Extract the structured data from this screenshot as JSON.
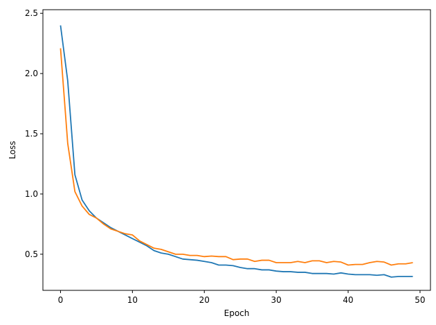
{
  "chart_data": {
    "type": "line",
    "title": "",
    "xlabel": "Epoch",
    "ylabel": "Loss",
    "xlim": [
      -2.45,
      51.45
    ],
    "ylim": [
      0.2,
      2.53
    ],
    "xticks": [
      0,
      10,
      20,
      30,
      40,
      50
    ],
    "yticks": [
      0.5,
      1.0,
      1.5,
      2.0,
      2.5
    ],
    "ytick_labels": [
      "0.5",
      "1.0",
      "1.5",
      "2.0",
      "2.5"
    ],
    "grid": false,
    "legend": "none",
    "x": [
      0,
      1,
      2,
      3,
      4,
      5,
      6,
      7,
      8,
      9,
      10,
      11,
      12,
      13,
      14,
      15,
      16,
      17,
      18,
      19,
      20,
      21,
      22,
      23,
      24,
      25,
      26,
      27,
      28,
      29,
      30,
      31,
      32,
      33,
      34,
      35,
      36,
      37,
      38,
      39,
      40,
      41,
      42,
      43,
      44,
      45,
      46,
      47,
      48,
      49
    ],
    "series": [
      {
        "color": "#1f77b4",
        "values": [
          2.4,
          1.94,
          1.16,
          0.95,
          0.86,
          0.8,
          0.76,
          0.72,
          0.69,
          0.66,
          0.63,
          0.6,
          0.57,
          0.53,
          0.51,
          0.5,
          0.48,
          0.46,
          0.455,
          0.45,
          0.44,
          0.43,
          0.41,
          0.41,
          0.405,
          0.39,
          0.38,
          0.38,
          0.37,
          0.37,
          0.36,
          0.355,
          0.355,
          0.35,
          0.35,
          0.34,
          0.34,
          0.34,
          0.335,
          0.345,
          0.335,
          0.33,
          0.33,
          0.33,
          0.325,
          0.33,
          0.31,
          0.315,
          0.315,
          0.315
        ]
      },
      {
        "color": "#ff7f0e",
        "values": [
          2.21,
          1.42,
          1.02,
          0.9,
          0.83,
          0.8,
          0.75,
          0.71,
          0.69,
          0.67,
          0.66,
          0.61,
          0.58,
          0.55,
          0.54,
          0.52,
          0.5,
          0.5,
          0.49,
          0.49,
          0.48,
          0.485,
          0.48,
          0.48,
          0.455,
          0.46,
          0.46,
          0.44,
          0.45,
          0.45,
          0.43,
          0.43,
          0.43,
          0.44,
          0.43,
          0.445,
          0.445,
          0.43,
          0.44,
          0.435,
          0.41,
          0.415,
          0.415,
          0.43,
          0.44,
          0.435,
          0.41,
          0.42,
          0.42,
          0.43
        ]
      }
    ]
  }
}
